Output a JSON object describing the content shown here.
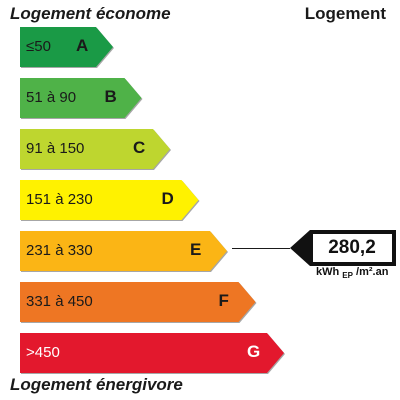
{
  "header": {
    "title_left": "Logement économe",
    "title_right": "Logement"
  },
  "footer": {
    "title": "Logement énergivore"
  },
  "bands": [
    {
      "range": "≤50",
      "letter": "A",
      "color": "#1a9a46"
    },
    {
      "range": "51 à 90",
      "letter": "B",
      "color": "#4fb248"
    },
    {
      "range": "91 à 150",
      "letter": "C",
      "color": "#bed62f"
    },
    {
      "range": "151 à 230",
      "letter": "D",
      "color": "#fff200"
    },
    {
      "range": "231 à 330",
      "letter": "E",
      "color": "#fbb515"
    },
    {
      "range": "331 à 450",
      "letter": "F",
      "color": "#ee7623"
    },
    {
      "range": ">450",
      "letter": "G",
      "color": "#e3182d",
      "text_color": "#ffffff"
    }
  ],
  "rating": {
    "value": "280,2",
    "band": "E",
    "unit_prefix": "kWh",
    "unit_sub": "EP",
    "unit_suffix": "/m².an"
  }
}
